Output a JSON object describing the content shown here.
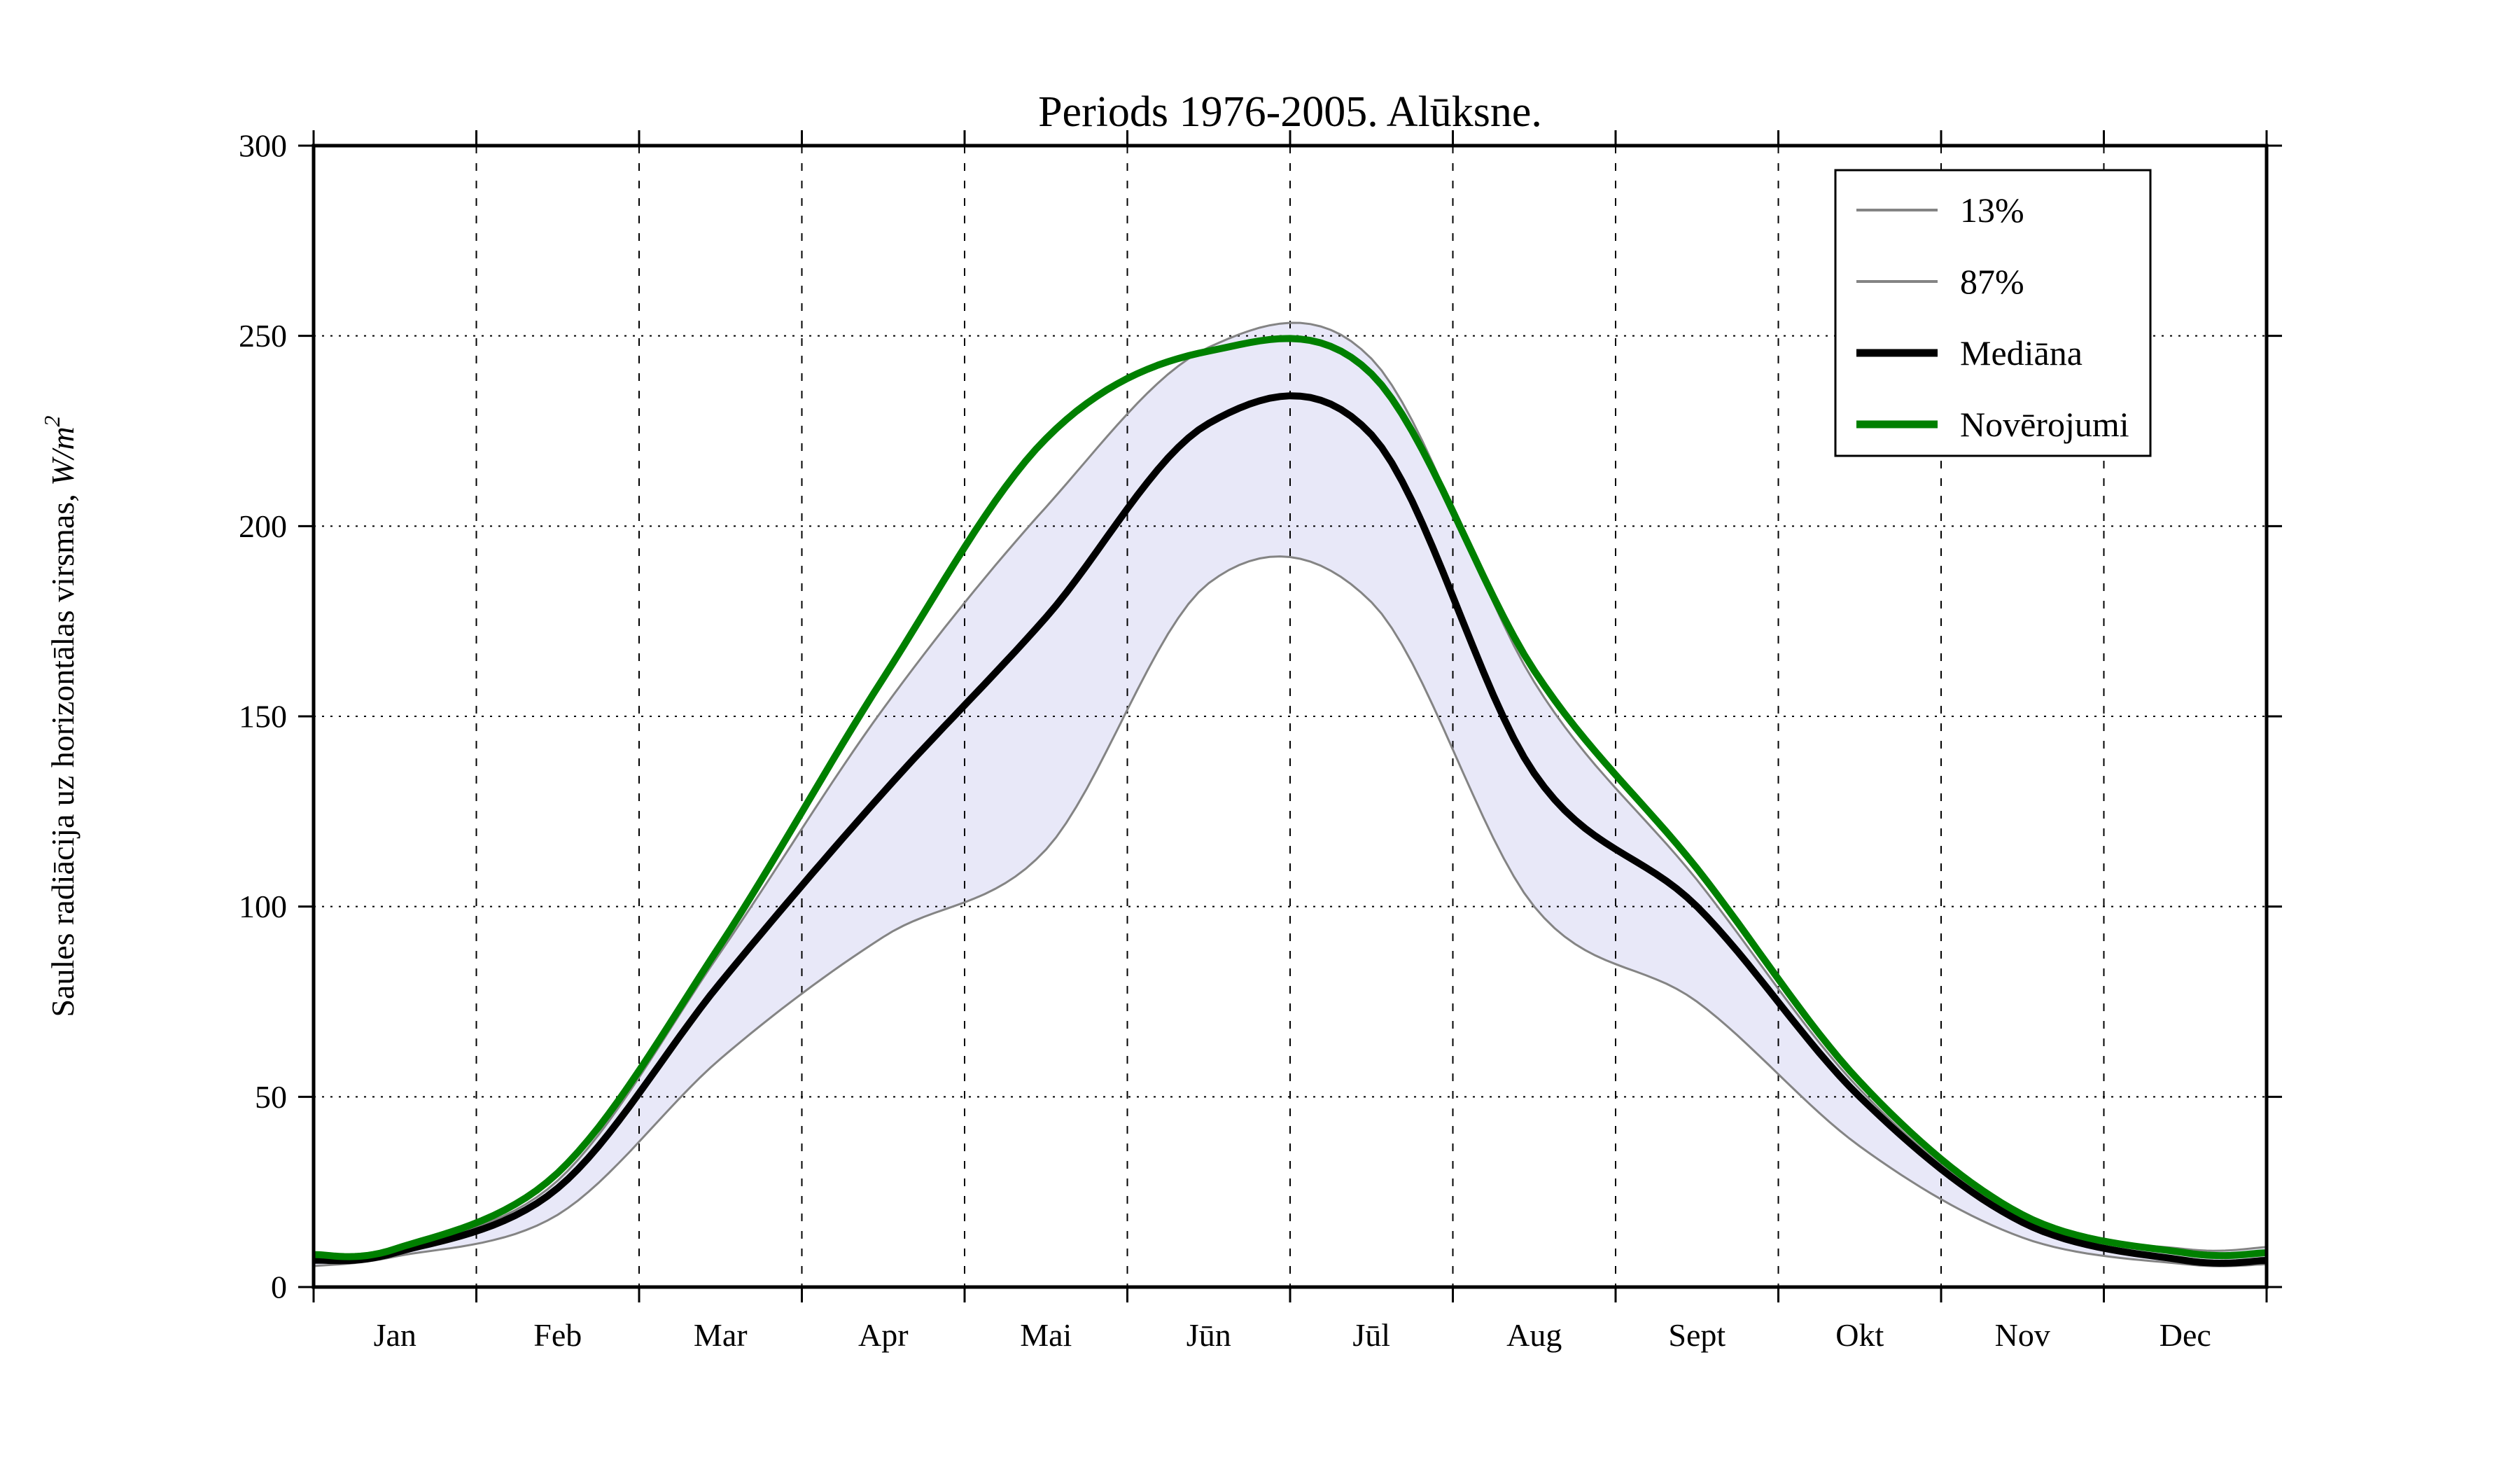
{
  "title": "Periods 1976-2005. Alūksne.",
  "axes": {
    "ylabel_text": "Saules radiācija uz horizontālas virsmas, ",
    "ylabel_math": "W/m",
    "ylabel_exponent": "2",
    "y_ticks": [
      "0",
      "50",
      "100",
      "150",
      "200",
      "250",
      "300"
    ],
    "x_ticks": [
      "Jan",
      "Feb",
      "Mar",
      "Apr",
      "Mai",
      "Jūn",
      "Jūl",
      "Aug",
      "Sept",
      "Okt",
      "Nov",
      "Dec"
    ]
  },
  "legend": [
    {
      "label": "13%",
      "color": "#848484",
      "line_width": 4
    },
    {
      "label": "87%",
      "color": "#848484",
      "line_width": 4
    },
    {
      "label": "Mediāna",
      "color": "#000000",
      "line_width": 11
    },
    {
      "label": "Novērojumi",
      "color": "#008000",
      "line_width": 11
    }
  ],
  "colors": {
    "percentile_line": "#848484",
    "median_line": "#000000",
    "observation_line": "#008000",
    "band_fill": "#E8E8F8",
    "grid": "#000000",
    "frame": "#000000",
    "background": "#ffffff"
  },
  "chart_data": {
    "type": "line",
    "title": "Periods 1976-2005. Alūksne.",
    "xlabel": "",
    "ylabel": "Saules radiācija uz horizontālas virsmas, W/m²",
    "ylim": [
      0,
      300
    ],
    "y_tick_step": 50,
    "grid": "dotted",
    "legend_position": "upper right",
    "x_categories": [
      "Jan",
      "Feb",
      "Mar",
      "Apr",
      "Mai",
      "Jūn",
      "Jūl",
      "Aug",
      "Sept",
      "Okt",
      "Nov",
      "Dec"
    ],
    "sampling_note": "values are monthly means plotted at mid-month; edge_start/edge_end are the curve values at Jan 1 and Dec 31 plot borders",
    "band": {
      "between": [
        "13%",
        "87%"
      ],
      "fill": "#E8E8F8"
    },
    "series": [
      {
        "name": "13%",
        "color": "#848484",
        "line_width": 3,
        "edge_start": 7.5,
        "edge_end": 10.5,
        "values": [
          10,
          28,
          88,
          152,
          205,
          247,
          244,
          159,
          107,
          52,
          18,
          10
        ]
      },
      {
        "name": "87%",
        "color": "#848484",
        "line_width": 3,
        "edge_start": 5.5,
        "edge_end": 6,
        "values": [
          8,
          19,
          60,
          92,
          115,
          185,
          180,
          100,
          75,
          37,
          13,
          6
        ]
      },
      {
        "name": "Mediāna",
        "color": "#000000",
        "line_width": 10,
        "edge_start": 7,
        "edge_end": 7,
        "values": [
          9,
          26,
          80,
          130,
          176,
          227,
          224,
          135,
          100,
          50,
          17,
          7
        ]
      },
      {
        "name": "Novērojumi",
        "color": "#008000",
        "line_width": 10,
        "edge_start": 8.5,
        "edge_end": 9,
        "values": [
          10,
          30,
          90,
          160,
          223,
          246,
          240,
          162,
          110,
          54,
          19,
          9
        ]
      }
    ]
  }
}
